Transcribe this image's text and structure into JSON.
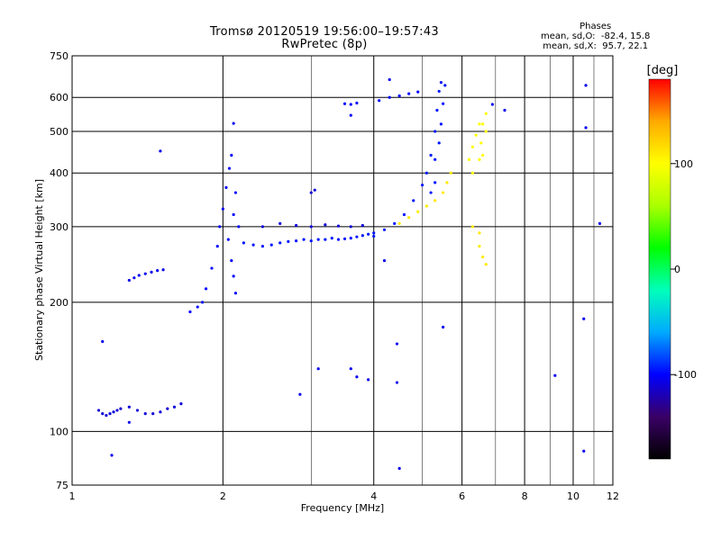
{
  "chart_data": {
    "type": "scatter",
    "title": "Tromsø 20120519 19:56:00–19:57:43",
    "subtitle": "RwPretec (8p)",
    "xlabel": "Frequency [MHz]",
    "ylabel": "Stationary phase Virtual Height [km]",
    "x_scale": "log",
    "y_scale": "log",
    "xlim": [
      1,
      12
    ],
    "ylim": [
      75,
      750
    ],
    "x_ticks": [
      1,
      2,
      4,
      6,
      8,
      10,
      12
    ],
    "y_ticks": [
      75,
      100,
      200,
      300,
      400,
      500,
      600,
      750
    ],
    "colorbar": {
      "label": "[deg]",
      "range": [
        -180,
        180
      ],
      "ticks": [
        100,
        0,
        -100
      ],
      "colors": [
        "#000000",
        "#3a0066",
        "#0000ff",
        "#00aaff",
        "#00ffbb",
        "#00ff00",
        "#aaff00",
        "#ffff00",
        "#ffaa00",
        "#ff0000"
      ]
    },
    "stats_title": "Phases",
    "stats_line1": "mean, sd,O:  -82.4, 15.8",
    "stats_line2": "mean, sd,X:  95.7, 22.1",
    "series": [
      {
        "points": [
          [
            1.13,
            112
          ],
          [
            1.15,
            110
          ],
          [
            1.17,
            109
          ],
          [
            1.19,
            110
          ],
          [
            1.21,
            111
          ],
          [
            1.23,
            112
          ],
          [
            1.25,
            113
          ],
          [
            1.3,
            114
          ],
          [
            1.35,
            112
          ],
          [
            1.4,
            110
          ],
          [
            1.45,
            110
          ],
          [
            1.5,
            111
          ],
          [
            1.55,
            113
          ],
          [
            1.6,
            114
          ],
          [
            1.65,
            116
          ]
        ],
        "phase": -110
      },
      {
        "points": [
          [
            1.3,
            225
          ],
          [
            1.33,
            228
          ],
          [
            1.36,
            231
          ],
          [
            1.4,
            233
          ],
          [
            1.44,
            235
          ],
          [
            1.48,
            237
          ],
          [
            1.52,
            238
          ]
        ],
        "phase": -105
      },
      {
        "points": [
          [
            1.72,
            190
          ],
          [
            1.78,
            195
          ],
          [
            1.82,
            200
          ],
          [
            1.85,
            215
          ],
          [
            1.9,
            240
          ],
          [
            1.95,
            270
          ],
          [
            1.97,
            300
          ],
          [
            2.0,
            330
          ],
          [
            2.03,
            370
          ],
          [
            2.06,
            410
          ],
          [
            2.08,
            440
          ],
          [
            2.05,
            280
          ],
          [
            2.1,
            320
          ],
          [
            2.12,
            360
          ],
          [
            2.15,
            300
          ],
          [
            2.08,
            250
          ],
          [
            2.1,
            230
          ],
          [
            2.12,
            210
          ]
        ],
        "phase": -100
      },
      {
        "points": [
          [
            2.2,
            275
          ],
          [
            2.3,
            272
          ],
          [
            2.4,
            270
          ],
          [
            2.5,
            272
          ],
          [
            2.6,
            275
          ],
          [
            2.7,
            277
          ],
          [
            2.8,
            278
          ],
          [
            2.9,
            280
          ],
          [
            3.0,
            278
          ],
          [
            3.1,
            280
          ],
          [
            3.2,
            280
          ],
          [
            3.3,
            282
          ],
          [
            3.4,
            280
          ],
          [
            3.5,
            281
          ],
          [
            3.6,
            282
          ],
          [
            3.7,
            284
          ],
          [
            3.8,
            286
          ],
          [
            3.9,
            288
          ],
          [
            4.0,
            290
          ]
        ],
        "phase": -95
      },
      {
        "points": [
          [
            2.4,
            300
          ],
          [
            2.6,
            305
          ],
          [
            2.8,
            302
          ],
          [
            3.0,
            300
          ],
          [
            3.2,
            303
          ],
          [
            3.4,
            301
          ],
          [
            3.6,
            300
          ],
          [
            3.8,
            302
          ],
          [
            3.0,
            360
          ],
          [
            3.05,
            365
          ]
        ],
        "phase": -110
      },
      {
        "points": [
          [
            3.5,
            580
          ],
          [
            3.6,
            578
          ],
          [
            3.7,
            582
          ],
          [
            4.1,
            590
          ],
          [
            4.3,
            600
          ],
          [
            4.5,
            605
          ],
          [
            4.7,
            612
          ],
          [
            4.9,
            618
          ],
          [
            3.6,
            545
          ]
        ],
        "phase": -100
      },
      {
        "points": [
          [
            4.0,
            285
          ],
          [
            4.2,
            295
          ],
          [
            4.4,
            305
          ],
          [
            4.6,
            320
          ],
          [
            4.8,
            345
          ],
          [
            5.0,
            375
          ],
          [
            5.1,
            400
          ],
          [
            5.2,
            440
          ],
          [
            5.3,
            500
          ],
          [
            5.35,
            560
          ],
          [
            5.4,
            620
          ],
          [
            5.45,
            650
          ],
          [
            5.3,
            430
          ],
          [
            5.4,
            470
          ],
          [
            5.45,
            520
          ],
          [
            5.5,
            580
          ],
          [
            5.55,
            640
          ],
          [
            5.2,
            360
          ],
          [
            5.3,
            380
          ]
        ],
        "phase": -95
      },
      {
        "points": [
          [
            4.5,
            305
          ],
          [
            4.7,
            315
          ],
          [
            4.9,
            325
          ],
          [
            5.1,
            335
          ],
          [
            5.3,
            345
          ],
          [
            5.5,
            360
          ],
          [
            5.6,
            380
          ],
          [
            5.7,
            400
          ]
        ],
        "phase": 110
      },
      {
        "points": [
          [
            6.2,
            430
          ],
          [
            6.3,
            460
          ],
          [
            6.4,
            490
          ],
          [
            6.5,
            520
          ],
          [
            6.55,
            470
          ],
          [
            6.6,
            440
          ],
          [
            6.7,
            500
          ],
          [
            6.3,
            400
          ],
          [
            6.5,
            430
          ],
          [
            6.6,
            520
          ],
          [
            6.7,
            550
          ]
        ],
        "phase": 100
      },
      {
        "points": [
          [
            6.3,
            300
          ],
          [
            6.5,
            290
          ],
          [
            6.5,
            270
          ],
          [
            6.6,
            255
          ],
          [
            6.7,
            245
          ]
        ],
        "phase": 110
      },
      {
        "points": [
          [
            1.15,
            162
          ],
          [
            1.3,
            105
          ],
          [
            1.5,
            450
          ],
          [
            2.1,
            522
          ],
          [
            2.85,
            122
          ],
          [
            3.1,
            140
          ],
          [
            3.6,
            140
          ],
          [
            3.7,
            134
          ],
          [
            3.9,
            132
          ],
          [
            4.3,
            660
          ],
          [
            4.45,
            130
          ],
          [
            4.5,
            82
          ],
          [
            4.45,
            160
          ],
          [
            5.5,
            175
          ],
          [
            6.9,
            578
          ],
          [
            7.3,
            560
          ],
          [
            9.2,
            135
          ],
          [
            10.5,
            183
          ],
          [
            10.6,
            510
          ],
          [
            10.6,
            640
          ],
          [
            11.3,
            305
          ],
          [
            10.5,
            90
          ],
          [
            1.2,
            88
          ],
          [
            4.2,
            250
          ]
        ],
        "phase": -105
      }
    ]
  }
}
